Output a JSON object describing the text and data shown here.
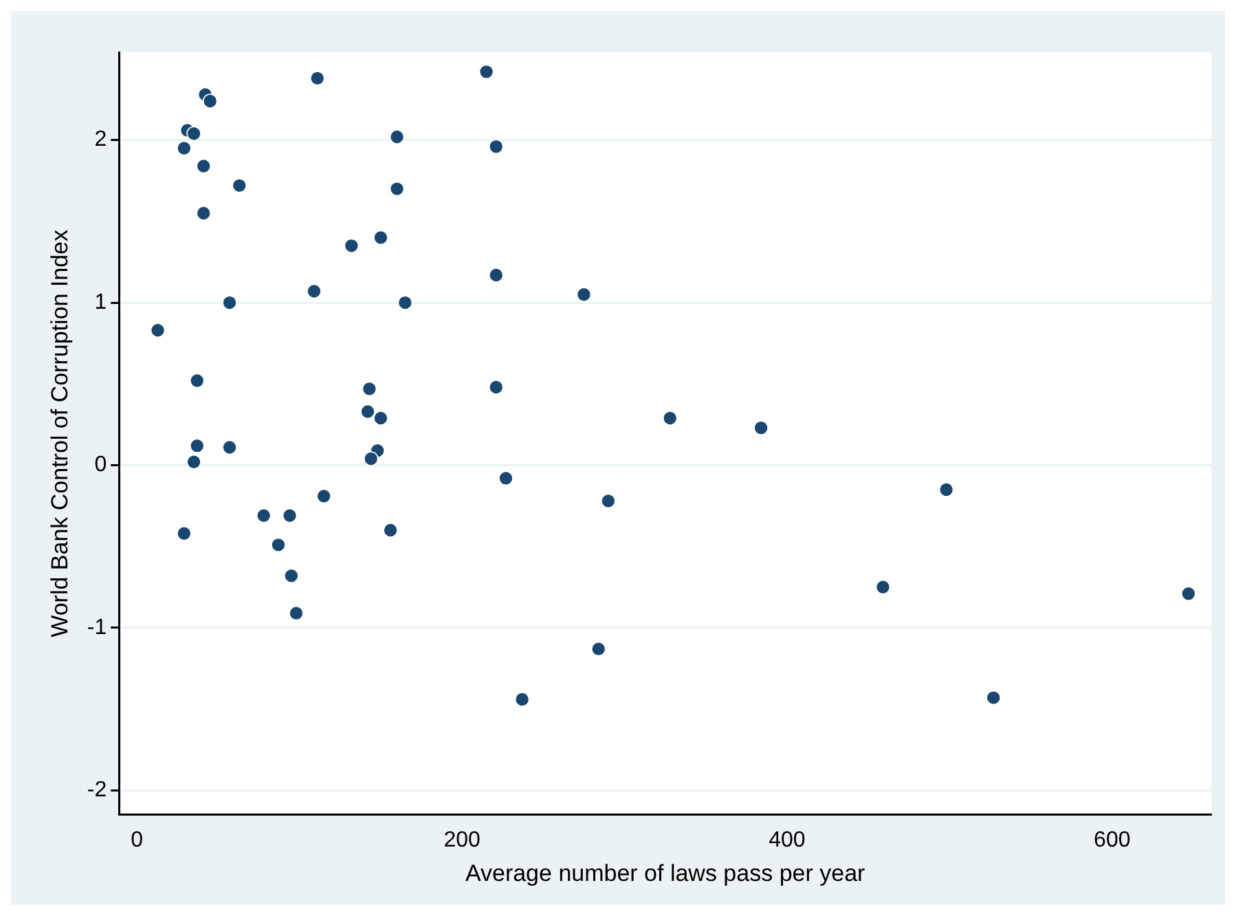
{
  "chart_data": {
    "type": "scatter",
    "xlabel": "Average number of laws pass per year",
    "ylabel": "World Bank Control of Corruption Index",
    "xlim": [
      -11,
      661
    ],
    "ylim": [
      -2.15,
      2.54
    ],
    "xticks": [
      0,
      200,
      400,
      600
    ],
    "yticks": [
      -2,
      -1,
      0,
      1,
      2
    ],
    "grid": "y",
    "legend": false,
    "marker": "circle",
    "series": [
      {
        "color": "#1a476f",
        "x": [
          12.8,
          29,
          31,
          35,
          42,
          45,
          41,
          41,
          63,
          57,
          37,
          37,
          35,
          29,
          57,
          78,
          94,
          87,
          95,
          98,
          115,
          109,
          111,
          132,
          150,
          160,
          160,
          165,
          143,
          142,
          150,
          148,
          144,
          156,
          215,
          221,
          221,
          221,
          227,
          275,
          237,
          290,
          284,
          328,
          384,
          498,
          459,
          647,
          527
        ],
        "values": [
          0.83,
          1.95,
          2.06,
          2.04,
          2.28,
          2.24,
          1.84,
          1.55,
          1.72,
          1.0,
          0.52,
          0.12,
          0.02,
          -0.42,
          0.11,
          -0.31,
          -0.31,
          -0.49,
          -0.68,
          -0.91,
          -0.19,
          1.07,
          2.38,
          1.35,
          1.4,
          2.02,
          1.7,
          1.0,
          0.47,
          0.33,
          0.29,
          0.09,
          0.04,
          -0.4,
          2.42,
          1.96,
          1.17,
          0.48,
          -0.08,
          1.05,
          -1.44,
          -0.22,
          -1.13,
          0.29,
          0.23,
          -0.15,
          -0.75,
          -0.79,
          -1.43
        ]
      }
    ]
  }
}
